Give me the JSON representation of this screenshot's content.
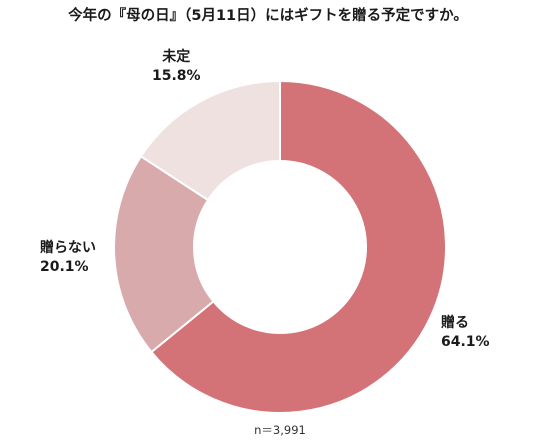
{
  "chart_data": {
    "type": "pie",
    "style": "donut",
    "title": "今年の『母の日』（5月11日）にはギフトを贈る予定ですか。",
    "slices": [
      {
        "label": "贈る",
        "value": 64.1,
        "display": "64.1%",
        "color": "#d37377"
      },
      {
        "label": "贈らない",
        "value": 20.1,
        "display": "20.1%",
        "color": "#d9aaac"
      },
      {
        "label": "未定",
        "value": 15.8,
        "display": "15.8%",
        "color": "#f0e1e1"
      }
    ],
    "start": "12 o'clock",
    "direction": "clockwise",
    "note": "n＝3,991"
  }
}
